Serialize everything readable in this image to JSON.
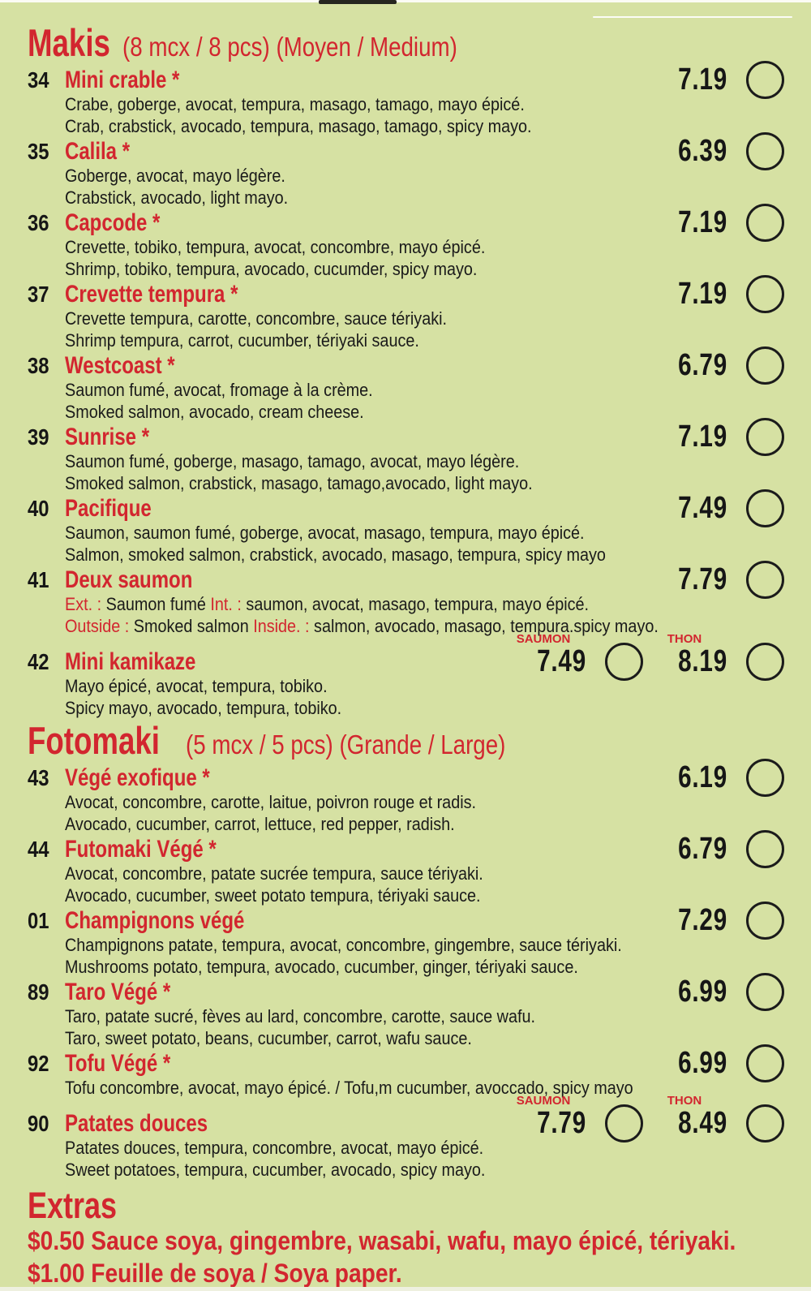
{
  "page": {
    "background": "#d6e1a3",
    "accent": "#d2262f",
    "text_color": "#1a1a1a"
  },
  "sections": [
    {
      "title": "Makis",
      "subtitle": "(8 mcx / 8 pcs) (Moyen / Medium)",
      "items": [
        {
          "num": "34",
          "name": "Mini crable",
          "asterisk": true,
          "prices": [
            {
              "label": null,
              "value": "7.19"
            }
          ],
          "desc": [
            [
              {
                "t": "Crabe, goberge, avocat, tempura, masago, tamago, mayo épicé."
              }
            ],
            [
              {
                "t": "Crab, crabstick, avocado, tempura, masago, tamago, spicy mayo."
              }
            ]
          ]
        },
        {
          "num": "35",
          "name": "Calila",
          "asterisk": true,
          "prices": [
            {
              "label": null,
              "value": "6.39"
            }
          ],
          "desc": [
            [
              {
                "t": "Goberge, avocat, mayo légère."
              }
            ],
            [
              {
                "t": "Crabstick, avocado, light mayo."
              }
            ]
          ]
        },
        {
          "num": "36",
          "name": "Capcode",
          "asterisk": true,
          "prices": [
            {
              "label": null,
              "value": "7.19"
            }
          ],
          "desc": [
            [
              {
                "t": "Crevette, tobiko, tempura, avocat, concombre, mayo épicé."
              }
            ],
            [
              {
                "t": "Shrimp, tobiko, tempura, avocado, cucumder, spicy mayo."
              }
            ]
          ]
        },
        {
          "num": "37",
          "name": "Crevette tempura",
          "asterisk": true,
          "prices": [
            {
              "label": null,
              "value": "7.19"
            }
          ],
          "desc": [
            [
              {
                "t": "Crevette tempura, carotte, concombre, sauce tériyaki."
              }
            ],
            [
              {
                "t": "Shrimp tempura, carrot, cucumber, tériyaki sauce."
              }
            ]
          ]
        },
        {
          "num": "38",
          "name": "Westcoast",
          "asterisk": true,
          "prices": [
            {
              "label": null,
              "value": "6.79"
            }
          ],
          "desc": [
            [
              {
                "t": "Saumon fumé, avocat, fromage à la crème."
              }
            ],
            [
              {
                "t": "Smoked salmon, avocado, cream cheese."
              }
            ]
          ]
        },
        {
          "num": "39",
          "name": "Sunrise",
          "asterisk": true,
          "prices": [
            {
              "label": null,
              "value": "7.19"
            }
          ],
          "desc": [
            [
              {
                "t": "Saumon fumé, goberge, masago, tamago, avocat, mayo légère."
              }
            ],
            [
              {
                "t": "Smoked salmon, crabstick, masago, tamago,avocado, light mayo."
              }
            ]
          ]
        },
        {
          "num": "40",
          "name": "Pacifique",
          "asterisk": false,
          "prices": [
            {
              "label": null,
              "value": "7.49"
            }
          ],
          "desc": [
            [
              {
                "t": "Saumon, saumon fumé, goberge, avocat, masago, tempura, mayo épicé."
              }
            ],
            [
              {
                "t": "Salmon, smoked salmon, crabstick, avocado, masago, tempura, spicy mayo"
              }
            ]
          ]
        },
        {
          "num": "41",
          "name": "Deux saumon",
          "asterisk": false,
          "prices": [
            {
              "label": null,
              "value": "7.79"
            }
          ],
          "desc": [
            [
              {
                "t": "Ext. : ",
                "red": true
              },
              {
                "t": "Saumon fumé "
              },
              {
                "t": "Int. : ",
                "red": true
              },
              {
                "t": "saumon, avocat, masago, tempura, mayo épicé."
              }
            ],
            [
              {
                "t": "Outside : ",
                "red": true
              },
              {
                "t": "Smoked salmon "
              },
              {
                "t": "Inside. : ",
                "red": true
              },
              {
                "t": "salmon, avocado, masago, tempura.spicy mayo."
              }
            ]
          ]
        },
        {
          "num": "42",
          "name": "Mini kamikaze",
          "asterisk": false,
          "prices": [
            {
              "label": "SAUMON",
              "value": "7.49"
            },
            {
              "label": "THON",
              "value": "8.19"
            }
          ],
          "desc": [
            [
              {
                "t": "Mayo épicé, avocat, tempura, tobiko."
              }
            ],
            [
              {
                "t": "Spicy mayo, avocado, tempura, tobiko."
              }
            ]
          ]
        }
      ]
    },
    {
      "title": "Fotomaki",
      "subtitle": "(5 mcx / 5 pcs) (Grande / Large)",
      "items": [
        {
          "num": "43",
          "name": "Végé exofique",
          "asterisk": true,
          "prices": [
            {
              "label": null,
              "value": "6.19"
            }
          ],
          "desc": [
            [
              {
                "t": "Avocat, concombre, carotte, laitue, poivron rouge et radis."
              }
            ],
            [
              {
                "t": "Avocado, cucumber, carrot, lettuce, red pepper, radish."
              }
            ]
          ]
        },
        {
          "num": "44",
          "name": "Futomaki Végé",
          "asterisk": true,
          "prices": [
            {
              "label": null,
              "value": "6.79"
            }
          ],
          "desc": [
            [
              {
                "t": "Avocat, concombre, patate sucrée tempura, sauce tériyaki."
              }
            ],
            [
              {
                "t": "Avocado, cucumber, sweet potato tempura, tériyaki sauce."
              }
            ]
          ]
        },
        {
          "num": "01",
          "name": "Champignons végé",
          "asterisk": false,
          "prices": [
            {
              "label": null,
              "value": "7.29"
            }
          ],
          "desc": [
            [
              {
                "t": "Champignons patate, tempura, avocat, concombre, gingembre, sauce tériyaki."
              }
            ],
            [
              {
                "t": "Mushrooms potato, tempura, avocado, cucumber, ginger, tériyaki sauce."
              }
            ]
          ]
        },
        {
          "num": "89",
          "name": "Taro Végé",
          "asterisk": true,
          "prices": [
            {
              "label": null,
              "value": "6.99"
            }
          ],
          "desc": [
            [
              {
                "t": "Taro, patate sucré, fèves au lard, concombre, carotte, sauce wafu."
              }
            ],
            [
              {
                "t": "Taro, sweet potato, beans, cucumber, carrot, wafu sauce."
              }
            ]
          ]
        },
        {
          "num": "92",
          "name": "Tofu Végé",
          "asterisk": true,
          "prices": [
            {
              "label": null,
              "value": "6.99"
            }
          ],
          "desc": [
            [
              {
                "t": "Tofu concombre, avocat, mayo épicé. / Tofu,m cucumber, avoccado, spicy mayo"
              }
            ]
          ]
        },
        {
          "num": "90",
          "name": "Patates douces",
          "asterisk": false,
          "prices": [
            {
              "label": "SAUMON",
              "value": "7.79"
            },
            {
              "label": "THON",
              "value": "8.49"
            }
          ],
          "desc": [
            [
              {
                "t": "Patates douces, tempura, concombre, avocat, mayo épicé."
              }
            ],
            [
              {
                "t": "Sweet potatoes, tempura, cucumber, avocado, spicy mayo."
              }
            ]
          ]
        }
      ]
    }
  ],
  "extras": {
    "title": "Extras",
    "lines": [
      "$0.50 Sauce soya, gingembre, wasabi, wafu, mayo épicé, tériyaki.",
      "$1.00 Feuille de soya / Soya paper."
    ]
  }
}
